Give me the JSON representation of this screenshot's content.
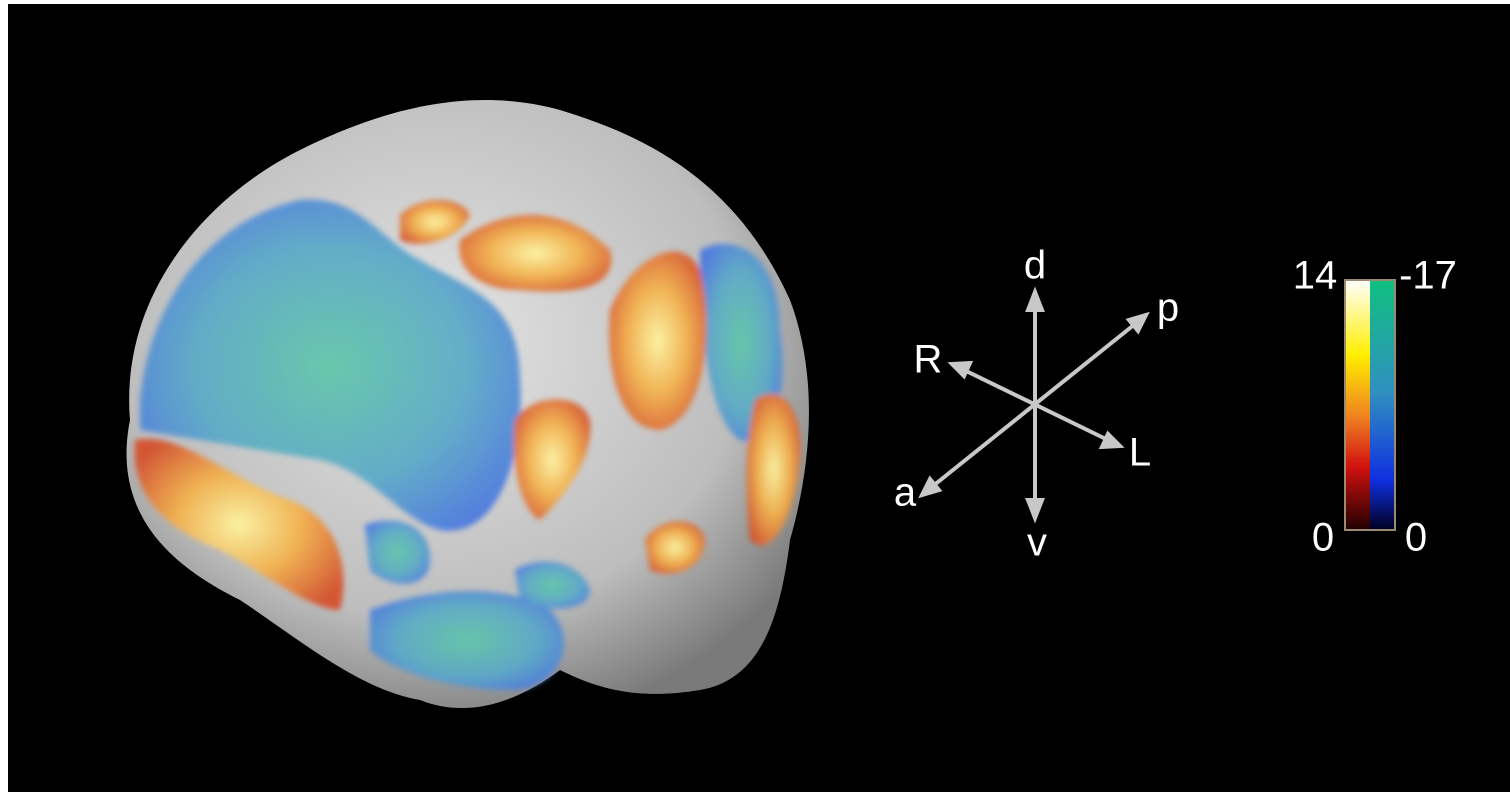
{
  "orientation": {
    "dorsal": "d",
    "ventral": "v",
    "right": "R",
    "left": "L",
    "posterior": "p",
    "anterior": "a"
  },
  "colorbar": {
    "positive_max": "14",
    "positive_min": "0",
    "negative_max": "-17",
    "negative_min": "0"
  }
}
